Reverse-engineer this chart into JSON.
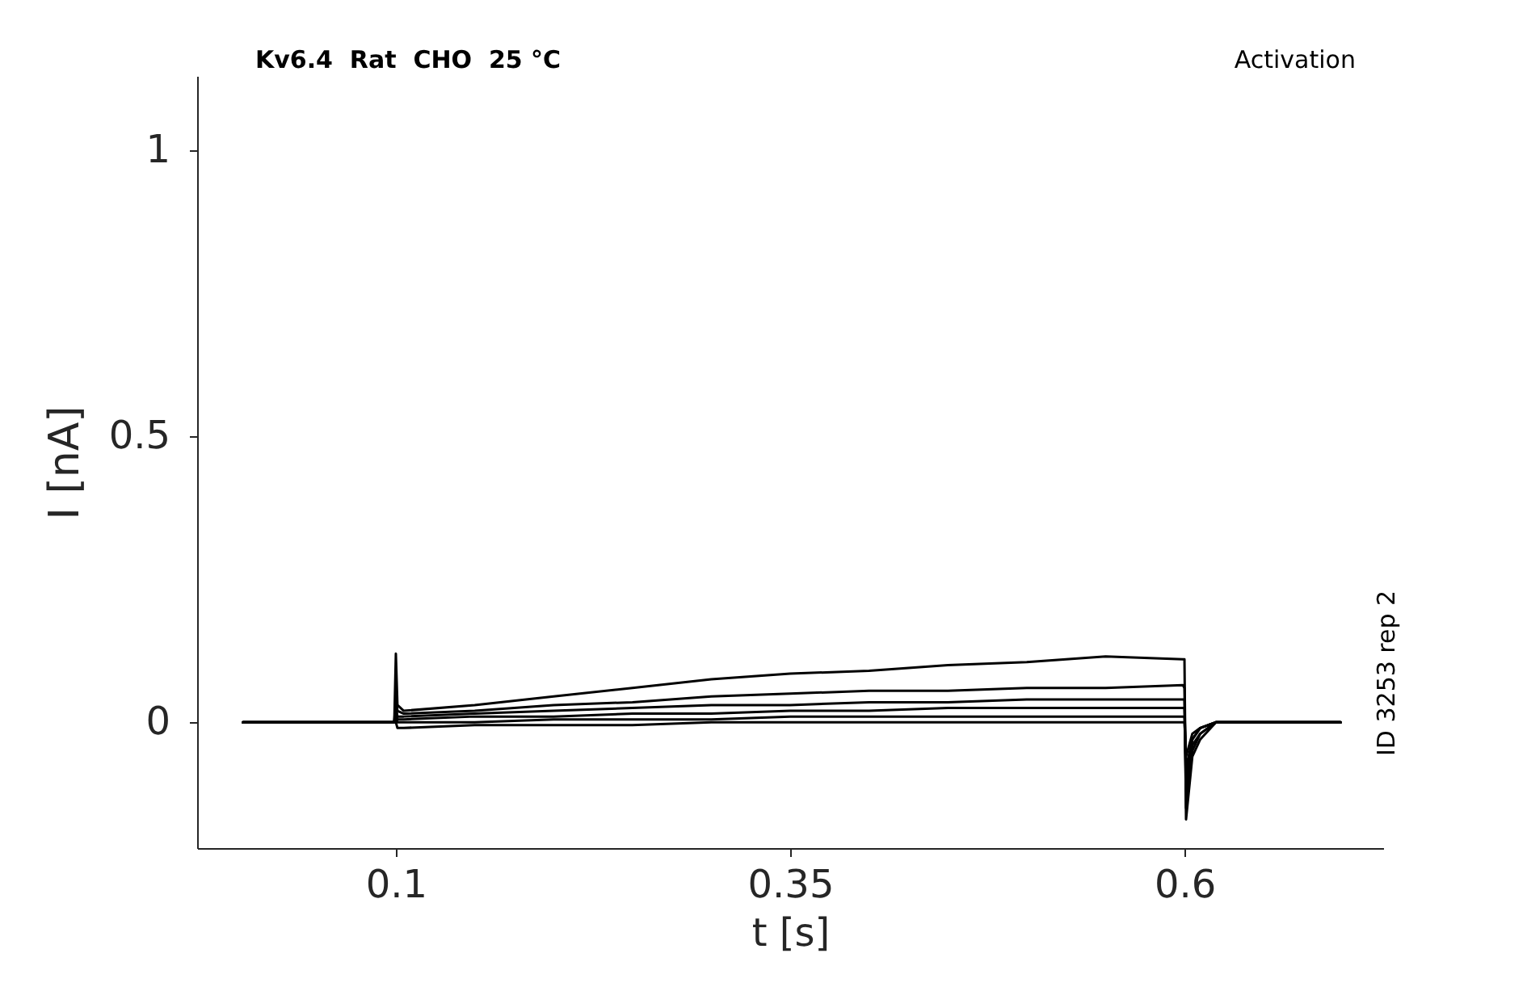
{
  "chart_data": {
    "type": "line",
    "title": "Kv6.4  Rat  CHO  25 °C",
    "xlabel": "t [s]",
    "ylabel": "I [nA]",
    "annotations": [
      "Activation",
      "ID 3253 rep 2"
    ],
    "x": [
      0.003,
      0.05,
      0.099,
      0.1,
      0.101,
      0.105,
      0.15,
      0.2,
      0.25,
      0.3,
      0.35,
      0.4,
      0.45,
      0.5,
      0.55,
      0.599,
      0.6,
      0.601,
      0.605,
      0.61,
      0.62,
      0.65,
      0.699
    ],
    "series": [
      {
        "color": "#000000",
        "values": [
          0,
          0,
          0,
          0.12,
          0.03,
          0.02,
          0.03,
          0.045,
          0.06,
          0.075,
          0.085,
          0.09,
          0.1,
          0.105,
          0.115,
          0.11,
          0.11,
          -0.17,
          -0.06,
          -0.03,
          0,
          0,
          0
        ]
      },
      {
        "color": "#000000",
        "values": [
          0,
          0,
          0,
          0.05,
          0.02,
          0.015,
          0.02,
          0.03,
          0.035,
          0.045,
          0.05,
          0.055,
          0.055,
          0.06,
          0.06,
          0.065,
          0.06,
          -0.15,
          -0.05,
          -0.02,
          0,
          0,
          0
        ]
      },
      {
        "color": "#000000",
        "values": [
          0,
          0,
          0,
          0.03,
          0.01,
          0.01,
          0.015,
          0.02,
          0.025,
          0.03,
          0.03,
          0.035,
          0.035,
          0.04,
          0.04,
          0.04,
          0.04,
          -0.12,
          -0.04,
          -0.02,
          0,
          0,
          0
        ]
      },
      {
        "color": "#000000",
        "values": [
          0,
          0,
          0,
          0.02,
          0.005,
          0.005,
          0.01,
          0.01,
          0.015,
          0.015,
          0.02,
          0.02,
          0.025,
          0.025,
          0.025,
          0.025,
          0.025,
          -0.1,
          -0.03,
          -0.01,
          0,
          0,
          0
        ]
      },
      {
        "color": "#000000",
        "values": [
          0,
          0,
          0,
          0.01,
          0,
          0,
          0,
          0.005,
          0.005,
          0.005,
          0.01,
          0.01,
          0.01,
          0.01,
          0.01,
          0.01,
          0.01,
          -0.08,
          -0.03,
          -0.01,
          0,
          0,
          0
        ]
      },
      {
        "color": "#000000",
        "values": [
          0,
          0,
          0,
          0,
          -0.01,
          -0.01,
          -0.005,
          -0.005,
          -0.005,
          0,
          0,
          0,
          0,
          0,
          0,
          0,
          0,
          -0.06,
          -0.02,
          -0.01,
          0,
          0,
          0
        ]
      }
    ],
    "xlim": [
      -0.026,
      0.726
    ],
    "ylim": [
      -0.22,
      1.13
    ],
    "xticks": [
      0.1,
      0.35,
      0.6
    ],
    "yticks": [
      0,
      0.5,
      1
    ],
    "grid": false
  }
}
